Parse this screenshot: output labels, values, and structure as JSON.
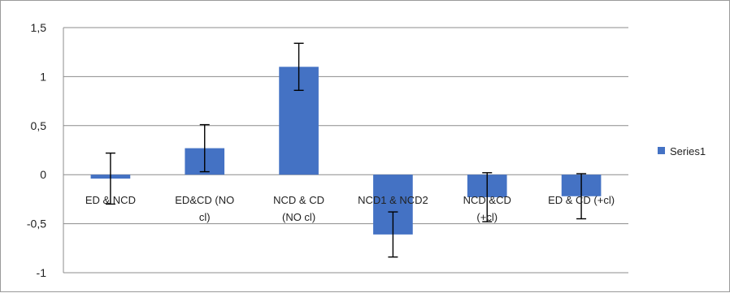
{
  "chart_data": {
    "type": "bar",
    "title": "",
    "xlabel": "",
    "ylabel": "",
    "categories": [
      [
        "ED & NCD"
      ],
      [
        "ED&CD (NO",
        "cl)"
      ],
      [
        "NCD & CD",
        "(NO cl)"
      ],
      [
        "NCD1 & NCD2"
      ],
      [
        "NCD &CD",
        "(+cl)"
      ],
      [
        "ED & CD (+cl)"
      ]
    ],
    "series": [
      {
        "name": "Series1",
        "color": "#4472c4",
        "values": [
          -0.04,
          0.27,
          1.1,
          -0.61,
          -0.23,
          -0.22
        ],
        "error": [
          0.26,
          0.24,
          0.24,
          0.23,
          0.25,
          0.23
        ]
      }
    ],
    "ylim": [
      -1,
      1.5
    ],
    "yticks": [
      "1,5",
      "1",
      "0,5",
      "0",
      "-0,5",
      "-1"
    ],
    "ytick_values": [
      1.5,
      1,
      0.5,
      0,
      -0.5,
      -1
    ],
    "grid": true,
    "legend": "right"
  }
}
